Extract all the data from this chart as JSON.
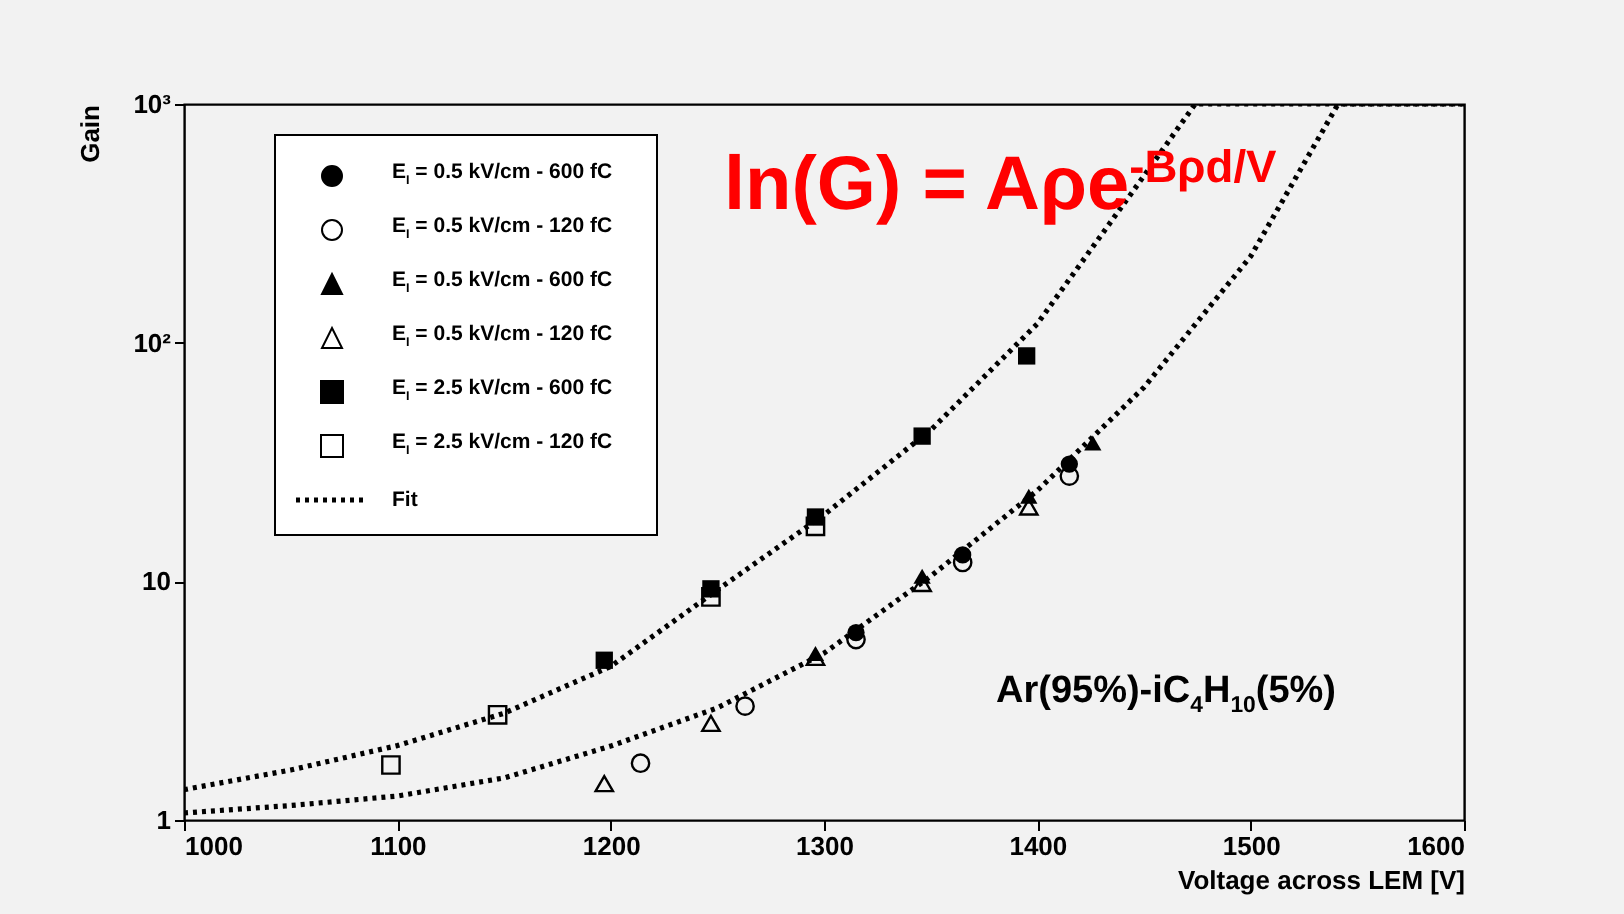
{
  "chart_data": {
    "type": "scatter",
    "xlabel": "Voltage across LEM [V]",
    "ylabel": "Gain",
    "log": "y",
    "xlim": [
      1000,
      1600
    ],
    "ylim": [
      1,
      1000
    ],
    "xticks": [
      1000,
      1100,
      1200,
      1300,
      1400,
      1500,
      1600
    ],
    "yticks": [
      1,
      10,
      {
        "value": 100,
        "label": "10²"
      },
      {
        "value": 1000,
        "label": "10³"
      }
    ],
    "legend": "top left",
    "annotations": [
      "ln(G) = Aρe$^{-Bρd/V}$",
      "Ar(95%)-iC$_{4}$H$_{10}$(5%)"
    ],
    "series": [
      {
        "name": "E$_{I}$ = 0.5 kV/cm - 600 fC",
        "color": "#000000",
        "marker": "circle",
        "x": [
          1315,
          1365,
          1415
        ],
        "values": [
          6.1,
          12.9,
          31
        ]
      },
      {
        "name": "E$_{I}$ = 0.5 kV/cm - 120 fC",
        "color": "#000000",
        "marker": "circle-open",
        "x": [
          1214,
          1263,
          1315,
          1365,
          1415
        ],
        "values": [
          1.73,
          3.0,
          5.7,
          12.0,
          27.6
        ]
      },
      {
        "name": "E$_{I}$ = 0.5 kV/cm - 600 fC",
        "color": "#000000",
        "marker": "triangle",
        "x": [
          1296,
          1346,
          1396,
          1426
        ],
        "values": [
          4.98,
          10.5,
          22.7,
          38
        ]
      },
      {
        "name": "E$_{I}$ = 0.5 kV/cm - 120 fC",
        "color": "#000000",
        "marker": "triangle-open",
        "x": [
          1197,
          1247,
          1296,
          1346,
          1396
        ],
        "values": [
          1.42,
          2.54,
          4.8,
          9.8,
          20.5
        ]
      },
      {
        "name": "E$_{I}$ = 2.5 kV/cm - 600 fC",
        "color": "#000000",
        "marker": "square",
        "x": [
          1197,
          1247,
          1296,
          1346,
          1395
        ],
        "values": [
          4.67,
          9.3,
          18.6,
          40.6,
          88
        ]
      },
      {
        "name": "E$_{I}$ = 2.5 kV/cm - 120 fC",
        "color": "#000000",
        "marker": "square-open",
        "x": [
          1097,
          1147,
          1247,
          1296
        ],
        "values": [
          1.7,
          2.76,
          8.6,
          17
        ]
      },
      {
        "name": "Fit",
        "type": "line",
        "color": "#000000",
        "line_style": "dotted",
        "marker": "none",
        "x": [
          1000,
          1050,
          1100,
          1150,
          1200,
          1250,
          1300,
          1350,
          1400,
          1450,
          1474,
          1600
        ],
        "values": [
          1.34,
          1.62,
          2.05,
          2.8,
          4.4,
          9.2,
          19,
          43,
          120,
          500,
          1000,
          1000
        ]
      },
      {
        "type": "line",
        "color": "#000000",
        "line_style": "dotted",
        "marker": "none",
        "x": [
          1000,
          1050,
          1100,
          1150,
          1200,
          1250,
          1300,
          1350,
          1400,
          1450,
          1500,
          1541,
          1600
        ],
        "values": [
          1.07,
          1.15,
          1.26,
          1.5,
          2.04,
          2.95,
          5,
          10.5,
          24,
          65,
          230,
          1000,
          1000
        ]
      }
    ]
  }
}
